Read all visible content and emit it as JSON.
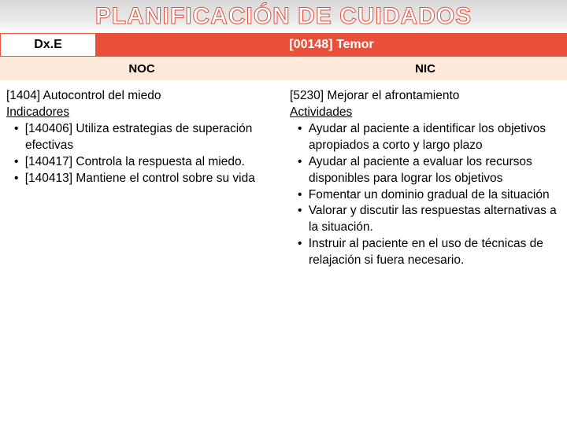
{
  "title": "PLANIFICACIÓN DE CUIDADOS",
  "colors": {
    "accent": "#e94f3a",
    "subheader_bg": "#fde9d9",
    "title_gradient_top": "#d9d9d9",
    "title_gradient_bottom": "#ffffff",
    "text": "#000000",
    "white": "#ffffff"
  },
  "header": {
    "dxe": "Dx.E",
    "diagnosis": "[00148] Temor"
  },
  "subheader": {
    "noc": "NOC",
    "nic": "NIC"
  },
  "noc": {
    "heading": "[1404] Autocontrol del miedo",
    "subheading": "Indicadores",
    "items": [
      "[140406] Utiliza estrategias de superación efectivas",
      "[140417] Controla la respuesta al miedo.",
      "[140413] Mantiene el control sobre su vida"
    ]
  },
  "nic": {
    "heading": "[5230] Mejorar el afrontamiento",
    "subheading": "Actividades",
    "items": [
      "Ayudar al paciente a identificar los objetivos apropiados a corto y largo plazo",
      "Ayudar al paciente a evaluar los recursos disponibles para lograr los objetivos",
      "Fomentar un dominio gradual de la situación",
      "Valorar y discutir las respuestas alternativas a la situación.",
      "Instruir al paciente en el uso de técnicas de relajación si fuera necesario."
    ]
  }
}
